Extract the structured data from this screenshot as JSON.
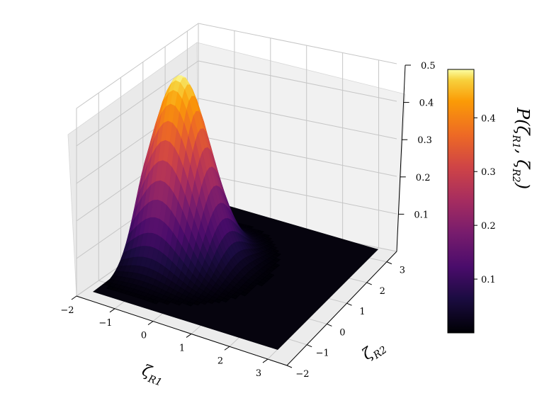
{
  "chart_data": {
    "type": "surface3d",
    "title": "",
    "x_axis": {
      "label": "ζ",
      "label_sub": "R1",
      "range": [
        -2,
        3.5
      ],
      "ticks": [
        -2,
        -1,
        0,
        1,
        2,
        3
      ],
      "tick_labels": [
        "−2",
        "−1",
        "0",
        "1",
        "2",
        "3"
      ]
    },
    "y_axis": {
      "label": "ζ",
      "label_sub": "R2",
      "range": [
        -2,
        3.5
      ],
      "ticks": [
        -2,
        -1,
        0,
        1,
        2,
        3
      ],
      "tick_labels": [
        "−2",
        "−1",
        "0",
        "1",
        "2",
        "3"
      ]
    },
    "z_axis": {
      "range": [
        0,
        0.5
      ],
      "ticks": [
        0.1,
        0.2,
        0.3,
        0.4,
        0.5
      ],
      "tick_labels": [
        "0.1",
        "0.2",
        "0.3",
        "0.4",
        "0.5"
      ]
    },
    "surface": {
      "peak_value": 0.49,
      "peak_x": -1.0,
      "peak_y": 1.0,
      "spread_x": 0.72,
      "spread_y": 0.72
    },
    "colorbar": {
      "colormap": "inferno",
      "range": [
        0,
        0.49
      ],
      "ticks": [
        0.1,
        0.2,
        0.3,
        0.4
      ],
      "tick_labels": [
        "0.1",
        "0.2",
        "0.3",
        "0.4"
      ],
      "label": "P(ζR1, ζR2)",
      "label_parts": [
        "P(ζ",
        "R1",
        ", ζ",
        "R2",
        ")"
      ]
    },
    "grid": true
  }
}
